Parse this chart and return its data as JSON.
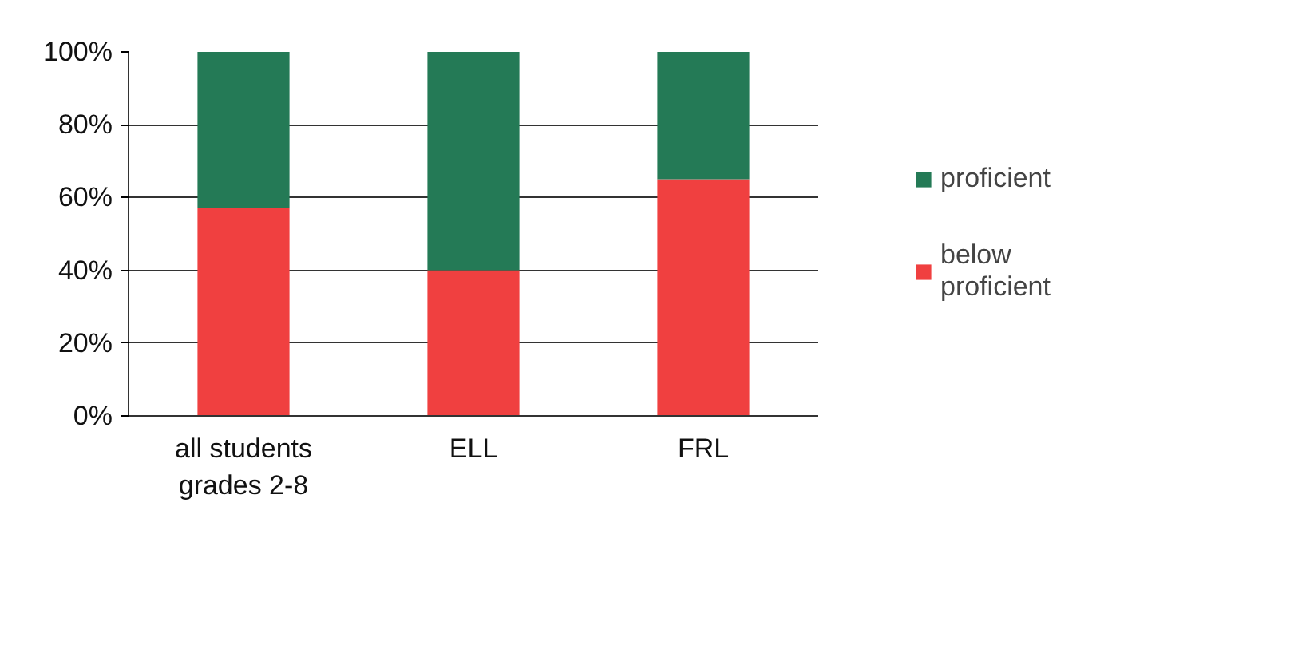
{
  "chart_data": {
    "type": "bar",
    "stacked": true,
    "categories": [
      "all students grades 2-8",
      "ELL",
      "FRL"
    ],
    "series": [
      {
        "name": "below proficient",
        "color": "#f04040",
        "values": [
          57,
          40,
          65
        ]
      },
      {
        "name": "proficient",
        "color": "#247a56",
        "values": [
          43,
          60,
          35
        ]
      }
    ],
    "ylim": [
      0,
      100
    ],
    "yticks": [
      {
        "value": 0,
        "label": "0%"
      },
      {
        "value": 20,
        "label": "20%"
      },
      {
        "value": 40,
        "label": "40%"
      },
      {
        "value": 60,
        "label": "60%"
      },
      {
        "value": 80,
        "label": "80%"
      },
      {
        "value": 100,
        "label": "100%"
      }
    ],
    "grid": "y",
    "legend": "right"
  }
}
